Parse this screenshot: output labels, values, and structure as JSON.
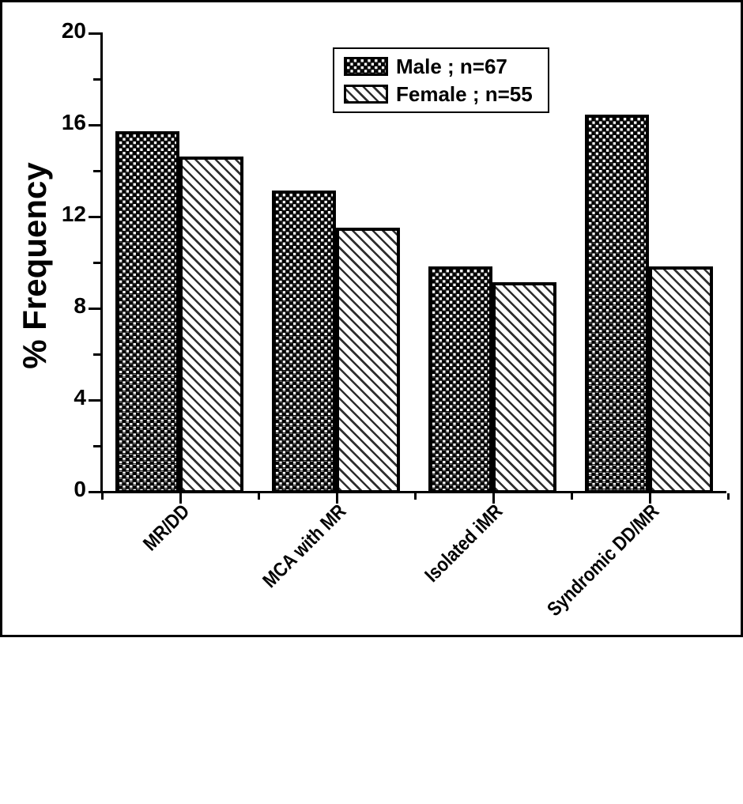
{
  "chart_data": {
    "type": "bar",
    "categories": [
      "MR/DD",
      "MCA with MR",
      "Isolated iMR",
      "Syndromic DD/MR"
    ],
    "series": [
      {
        "name": "Male ; n=67",
        "pattern": "checkerboard",
        "values": [
          15.7,
          13.1,
          9.8,
          16.4
        ]
      },
      {
        "name": "Female ; n=55",
        "pattern": "diagonal-stripes",
        "values": [
          14.6,
          11.5,
          9.1,
          9.8
        ]
      }
    ],
    "title": "",
    "xlabel": "",
    "ylabel": "% Frequency",
    "ylim": [
      0,
      20
    ],
    "yticks_major": [
      0,
      4,
      8,
      12,
      16,
      20
    ],
    "yticks_minor": [
      2,
      6,
      10,
      14,
      18
    ],
    "grid": false,
    "legend_position": "top-center",
    "colors": {
      "ink": "#000000",
      "background": "#ffffff"
    }
  },
  "legend": {
    "items": [
      {
        "label": "Male ; n=67"
      },
      {
        "label": "Female ; n=55"
      }
    ]
  }
}
